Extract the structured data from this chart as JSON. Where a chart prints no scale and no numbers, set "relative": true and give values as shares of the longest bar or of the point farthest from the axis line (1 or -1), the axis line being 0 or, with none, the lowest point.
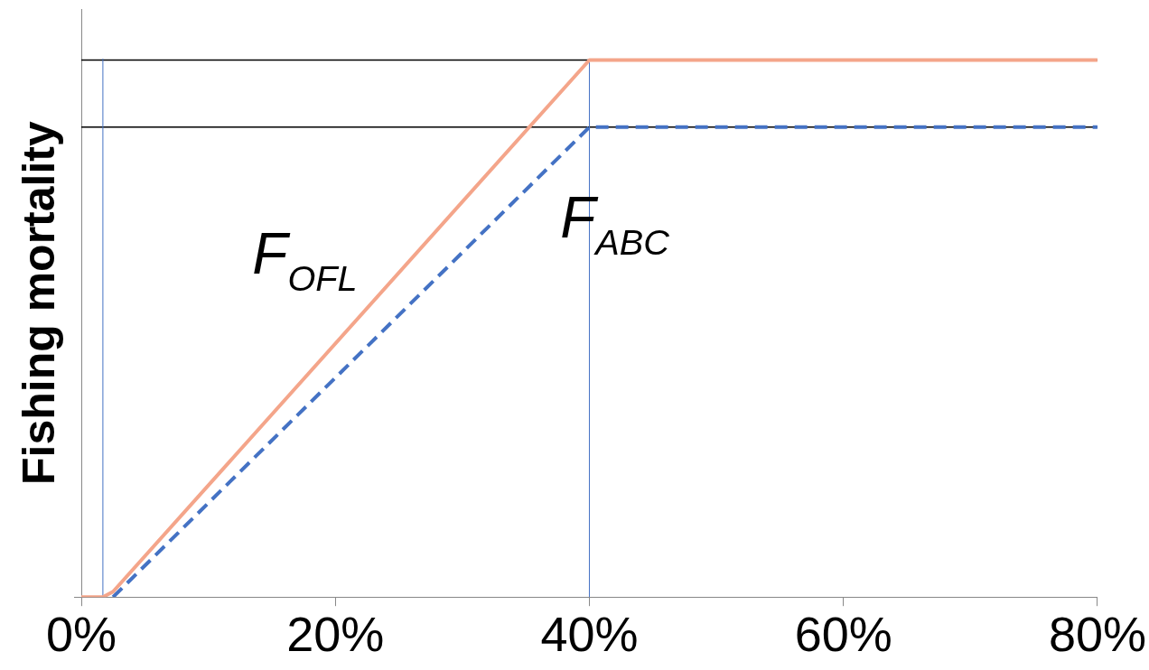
{
  "chart_data": {
    "type": "line",
    "ylabel": "Fishing mortality",
    "relative": true,
    "tick_labels": "x",
    "grid": false,
    "legend": false,
    "marker": "none",
    "xlim": [
      0,
      80
    ],
    "xticks": [
      {
        "value": 0,
        "label": "0%"
      },
      {
        "value": 20,
        "label": "20%"
      },
      {
        "value": 40,
        "label": "40%"
      },
      {
        "value": 60,
        "label": "60%"
      },
      {
        "value": 80,
        "label": "80%"
      }
    ],
    "series": [
      {
        "name": "F$_{OFL}$",
        "color": "#f4a58a",
        "line_style": "solid",
        "x": [
          0,
          1.7,
          2.5,
          40,
          80
        ],
        "values": [
          0,
          0,
          0.01,
          1,
          1
        ]
      },
      {
        "name": "F$_{ABC}$",
        "color": "#4472c4",
        "line_style": "dashed",
        "x": [
          2.5,
          40,
          80
        ],
        "values": [
          0,
          0.875,
          0.875
        ]
      }
    ],
    "ref_lines": [
      {
        "axis": "y",
        "value": 1,
        "color": "#000000"
      },
      {
        "axis": "y",
        "value": 0.875,
        "color": "#000000"
      },
      {
        "axis": "x",
        "value": 1.7,
        "color": "#4472c4"
      },
      {
        "axis": "x",
        "value": 40,
        "color": "#4472c4"
      }
    ]
  }
}
